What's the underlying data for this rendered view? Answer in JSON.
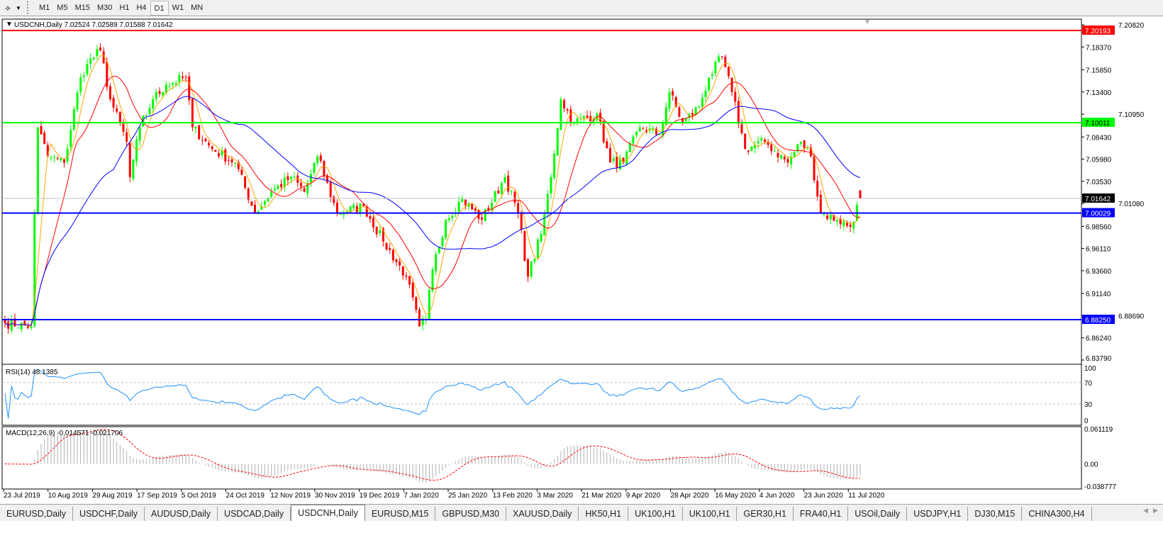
{
  "toolbar": {
    "timeframes": [
      "M1",
      "M5",
      "M15",
      "M30",
      "H1",
      "H4",
      "D1",
      "W1",
      "MN"
    ],
    "active": "D1"
  },
  "chart": {
    "header": "USDCNH,Daily  7.02524 7.02589 7.01588 7.01642",
    "symbol": "USDCNH",
    "period": "Daily",
    "open": 7.02524,
    "high": 7.02589,
    "low": 7.01588,
    "close": 7.01642,
    "current_price_label": "7.01642",
    "price_ticks": [
      "7.20820",
      "7.18370",
      "7.15850",
      "7.13400",
      "7.10950",
      "7.08430",
      "7.05980",
      "7.03530",
      "7.01080",
      "6.98560",
      "6.96110",
      "6.93660",
      "6.91140",
      "6.88690",
      "6.86240",
      "6.83790"
    ],
    "horizontal_lines": [
      {
        "price": 7.20193,
        "label": "7.20193",
        "color": "#ff0000"
      },
      {
        "price": 7.10011,
        "label": "7.10011",
        "color": "#00ff00"
      },
      {
        "price": 7.00029,
        "label": "7.00029",
        "color": "#0000ff"
      },
      {
        "price": 6.8825,
        "label": "6.88250",
        "color": "#0000ff"
      }
    ],
    "colors": {
      "bull": "#00ff00",
      "bear": "#ff0000",
      "ma_fast": "#ffa500",
      "ma_mid": "#ff0000",
      "ma_slow": "#0000ff"
    },
    "date_labels": [
      "23 Jul 2019",
      "10 Aug 2019",
      "29 Aug 2019",
      "17 Sep 2019",
      "5 Oct 2019",
      "24 Oct 2019",
      "12 Nov 2019",
      "30 Nov 2019",
      "19 Dec 2019",
      "7 Jan 2020",
      "25 Jan 2020",
      "13 Feb 2020",
      "3 Mar 2020",
      "21 Mar 2020",
      "9 Apr 2020",
      "28 Apr 2020",
      "16 May 2020",
      "4 Jun 2020",
      "23 Jun 2020",
      "11 Jul 2020"
    ],
    "close_keypoints": [
      [
        0,
        6.879
      ],
      [
        8,
        6.875
      ],
      [
        9,
        7.0
      ],
      [
        10,
        7.095
      ],
      [
        13,
        7.063
      ],
      [
        18,
        7.056
      ],
      [
        23,
        7.15
      ],
      [
        25,
        7.165
      ],
      [
        29,
        7.18
      ],
      [
        32,
        7.126
      ],
      [
        37,
        7.079
      ],
      [
        38,
        7.04
      ],
      [
        41,
        7.095
      ],
      [
        45,
        7.126
      ],
      [
        49,
        7.142
      ],
      [
        55,
        7.15
      ],
      [
        57,
        7.095
      ],
      [
        63,
        7.071
      ],
      [
        70,
        7.056
      ],
      [
        76,
        7.0
      ],
      [
        81,
        7.024
      ],
      [
        87,
        7.04
      ],
      [
        91,
        7.024
      ],
      [
        95,
        7.063
      ],
      [
        101,
        7.0
      ],
      [
        109,
        7.008
      ],
      [
        115,
        6.969
      ],
      [
        122,
        6.93
      ],
      [
        126,
        6.875
      ],
      [
        128,
        6.883
      ],
      [
        130,
        6.938
      ],
      [
        134,
        6.993
      ],
      [
        139,
        7.016
      ],
      [
        145,
        6.993
      ],
      [
        152,
        7.04
      ],
      [
        156,
        7.0
      ],
      [
        159,
        6.93
      ],
      [
        163,
        6.977
      ],
      [
        166,
        7.04
      ],
      [
        169,
        7.126
      ],
      [
        173,
        7.1
      ],
      [
        180,
        7.11
      ],
      [
        184,
        7.056
      ],
      [
        188,
        7.056
      ],
      [
        193,
        7.095
      ],
      [
        199,
        7.087
      ],
      [
        202,
        7.134
      ],
      [
        206,
        7.1
      ],
      [
        211,
        7.118
      ],
      [
        214,
        7.15
      ],
      [
        218,
        7.173
      ],
      [
        221,
        7.134
      ],
      [
        225,
        7.071
      ],
      [
        231,
        7.079
      ],
      [
        238,
        7.056
      ],
      [
        242,
        7.079
      ],
      [
        245,
        7.063
      ],
      [
        248,
        7.0
      ],
      [
        253,
        6.993
      ],
      [
        257,
        6.985
      ],
      [
        260,
        7.01642
      ]
    ]
  },
  "rsi": {
    "label": "RSI(14) 48.1385",
    "ticks": [
      "100",
      "70",
      "30",
      "0"
    ]
  },
  "macd": {
    "label": "MACD(12,26,9) -0.014571 -0.021706",
    "ticks": [
      "0.061119",
      "0.00",
      "-0.038777"
    ]
  },
  "tabs": [
    "EURUSD,Daily",
    "USDCHF,Daily",
    "AUDUSD,Daily",
    "USDCAD,Daily",
    "USDCNH,Daily",
    "EURUSD,M15",
    "GBPUSD,M30",
    "XAUUSD,Daily",
    "HK50,H1",
    "UK100,H1",
    "UK100,H1",
    "GER30,H1",
    "FRA40,H1",
    "USOil,Daily",
    "USDJPY,H1",
    "DJ30,M15",
    "CHINA300,H4"
  ],
  "active_tab": "USDCNH,Daily"
}
